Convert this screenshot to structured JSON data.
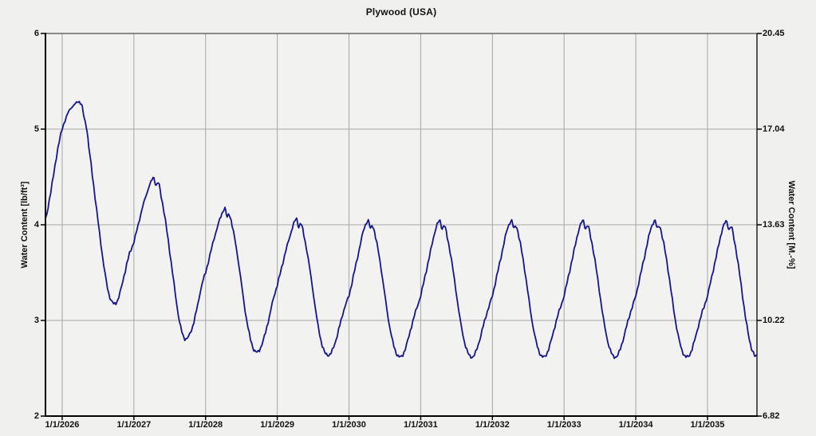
{
  "window": {
    "background": "#f0f0ee"
  },
  "chart": {
    "plot_background": "#f2f2f0",
    "grid_color": "#a6a6a6",
    "axis_color": "#000000",
    "frame_color": "#4d4d4d",
    "line_color": "#15158c"
  },
  "chart_data": {
    "type": "line",
    "title": "Plywood (USA)",
    "grid": true,
    "legend": "none",
    "x_axis": {
      "range_years": [
        2025.767,
        2035.69
      ],
      "tick_years": [
        2026,
        2027,
        2028,
        2029,
        2030,
        2031,
        2032,
        2033,
        2034,
        2035
      ],
      "tick_labels": [
        "1/1/2026",
        "1/1/2027",
        "1/1/2028",
        "1/1/2029",
        "1/1/2030",
        "1/1/2031",
        "1/1/2032",
        "1/1/2033",
        "1/1/2034",
        "1/1/2035"
      ]
    },
    "y_left": {
      "label": "Water Content [lb/ft³]",
      "range": [
        2,
        6
      ],
      "ticks": [
        6,
        5,
        4,
        3,
        2
      ]
    },
    "y_right": {
      "label": "Water Content [M.-%]",
      "tick_labels": [
        "20.45",
        "17.04",
        "13.63",
        "10.22",
        "6.82"
      ]
    },
    "series": [
      {
        "name": "Water Content",
        "color": "#15158c",
        "points": [
          [
            2025.77,
            4.06
          ],
          [
            2025.82,
            4.26
          ],
          [
            2025.88,
            4.52
          ],
          [
            2025.94,
            4.8
          ],
          [
            2026.0,
            5.0
          ],
          [
            2026.06,
            5.13
          ],
          [
            2026.12,
            5.22
          ],
          [
            2026.18,
            5.26
          ],
          [
            2026.24,
            5.29
          ],
          [
            2026.28,
            5.23
          ],
          [
            2026.31,
            5.1
          ],
          [
            2026.34,
            5.02
          ],
          [
            2026.37,
            4.82
          ],
          [
            2026.42,
            4.52
          ],
          [
            2026.48,
            4.16
          ],
          [
            2026.54,
            3.8
          ],
          [
            2026.6,
            3.48
          ],
          [
            2026.65,
            3.28
          ],
          [
            2026.7,
            3.19
          ],
          [
            2026.75,
            3.18
          ],
          [
            2026.81,
            3.3
          ],
          [
            2026.88,
            3.52
          ],
          [
            2026.94,
            3.7
          ],
          [
            2027.0,
            3.82
          ],
          [
            2027.06,
            4.0
          ],
          [
            2027.12,
            4.18
          ],
          [
            2027.18,
            4.33
          ],
          [
            2027.24,
            4.45
          ],
          [
            2027.28,
            4.49
          ],
          [
            2027.31,
            4.41
          ],
          [
            2027.34,
            4.44
          ],
          [
            2027.38,
            4.3
          ],
          [
            2027.44,
            4.04
          ],
          [
            2027.5,
            3.72
          ],
          [
            2027.56,
            3.38
          ],
          [
            2027.62,
            3.06
          ],
          [
            2027.67,
            2.88
          ],
          [
            2027.71,
            2.81
          ],
          [
            2027.76,
            2.83
          ],
          [
            2027.82,
            2.94
          ],
          [
            2027.89,
            3.16
          ],
          [
            2027.95,
            3.38
          ],
          [
            2028.0,
            3.5
          ],
          [
            2028.06,
            3.68
          ],
          [
            2028.12,
            3.86
          ],
          [
            2028.18,
            4.01
          ],
          [
            2028.23,
            4.12
          ],
          [
            2028.27,
            4.17
          ],
          [
            2028.3,
            4.08
          ],
          [
            2028.33,
            4.11
          ],
          [
            2028.37,
            3.99
          ],
          [
            2028.43,
            3.75
          ],
          [
            2028.49,
            3.44
          ],
          [
            2028.55,
            3.11
          ],
          [
            2028.61,
            2.86
          ],
          [
            2028.66,
            2.72
          ],
          [
            2028.7,
            2.67
          ],
          [
            2028.75,
            2.69
          ],
          [
            2028.82,
            2.83
          ],
          [
            2028.89,
            3.04
          ],
          [
            2028.95,
            3.24
          ],
          [
            2029.0,
            3.37
          ],
          [
            2029.06,
            3.55
          ],
          [
            2029.12,
            3.73
          ],
          [
            2029.18,
            3.89
          ],
          [
            2029.23,
            4.01
          ],
          [
            2029.27,
            4.06
          ],
          [
            2029.3,
            3.98
          ],
          [
            2029.33,
            4.01
          ],
          [
            2029.37,
            3.89
          ],
          [
            2029.43,
            3.65
          ],
          [
            2029.49,
            3.35
          ],
          [
            2029.55,
            3.03
          ],
          [
            2029.61,
            2.79
          ],
          [
            2029.66,
            2.67
          ],
          [
            2029.7,
            2.64
          ],
          [
            2029.75,
            2.66
          ],
          [
            2029.82,
            2.8
          ],
          [
            2029.89,
            3.0
          ],
          [
            2029.95,
            3.16
          ],
          [
            2030.0,
            3.26
          ],
          [
            2030.06,
            3.46
          ],
          [
            2030.12,
            3.66
          ],
          [
            2030.18,
            3.87
          ],
          [
            2030.23,
            4.0
          ],
          [
            2030.27,
            4.04
          ],
          [
            2030.3,
            3.96
          ],
          [
            2030.33,
            3.99
          ],
          [
            2030.37,
            3.87
          ],
          [
            2030.43,
            3.63
          ],
          [
            2030.49,
            3.32
          ],
          [
            2030.55,
            3.01
          ],
          [
            2030.61,
            2.78
          ],
          [
            2030.66,
            2.66
          ],
          [
            2030.7,
            2.62
          ],
          [
            2030.75,
            2.64
          ],
          [
            2030.82,
            2.79
          ],
          [
            2030.89,
            2.99
          ],
          [
            2030.95,
            3.14
          ],
          [
            2031.0,
            3.26
          ],
          [
            2031.06,
            3.46
          ],
          [
            2031.12,
            3.66
          ],
          [
            2031.18,
            3.87
          ],
          [
            2031.23,
            4.0
          ],
          [
            2031.27,
            4.04
          ],
          [
            2031.3,
            3.96
          ],
          [
            2031.33,
            3.99
          ],
          [
            2031.37,
            3.87
          ],
          [
            2031.43,
            3.63
          ],
          [
            2031.49,
            3.32
          ],
          [
            2031.55,
            3.01
          ],
          [
            2031.61,
            2.78
          ],
          [
            2031.66,
            2.66
          ],
          [
            2031.7,
            2.62
          ],
          [
            2031.75,
            2.64
          ],
          [
            2031.82,
            2.79
          ],
          [
            2031.89,
            2.99
          ],
          [
            2031.95,
            3.14
          ],
          [
            2032.0,
            3.26
          ],
          [
            2032.06,
            3.46
          ],
          [
            2032.12,
            3.66
          ],
          [
            2032.18,
            3.87
          ],
          [
            2032.23,
            4.0
          ],
          [
            2032.27,
            4.04
          ],
          [
            2032.3,
            3.96
          ],
          [
            2032.33,
            3.99
          ],
          [
            2032.37,
            3.87
          ],
          [
            2032.43,
            3.63
          ],
          [
            2032.49,
            3.32
          ],
          [
            2032.55,
            3.01
          ],
          [
            2032.61,
            2.78
          ],
          [
            2032.66,
            2.66
          ],
          [
            2032.7,
            2.62
          ],
          [
            2032.75,
            2.64
          ],
          [
            2032.82,
            2.79
          ],
          [
            2032.89,
            2.99
          ],
          [
            2032.95,
            3.14
          ],
          [
            2033.0,
            3.26
          ],
          [
            2033.06,
            3.46
          ],
          [
            2033.12,
            3.66
          ],
          [
            2033.18,
            3.87
          ],
          [
            2033.23,
            4.0
          ],
          [
            2033.27,
            4.04
          ],
          [
            2033.3,
            3.96
          ],
          [
            2033.33,
            3.99
          ],
          [
            2033.37,
            3.87
          ],
          [
            2033.43,
            3.63
          ],
          [
            2033.49,
            3.32
          ],
          [
            2033.55,
            3.01
          ],
          [
            2033.61,
            2.78
          ],
          [
            2033.66,
            2.66
          ],
          [
            2033.7,
            2.62
          ],
          [
            2033.75,
            2.64
          ],
          [
            2033.82,
            2.79
          ],
          [
            2033.89,
            2.99
          ],
          [
            2033.95,
            3.14
          ],
          [
            2034.0,
            3.26
          ],
          [
            2034.06,
            3.46
          ],
          [
            2034.12,
            3.66
          ],
          [
            2034.18,
            3.87
          ],
          [
            2034.23,
            4.0
          ],
          [
            2034.27,
            4.04
          ],
          [
            2034.3,
            3.96
          ],
          [
            2034.33,
            3.99
          ],
          [
            2034.37,
            3.87
          ],
          [
            2034.43,
            3.63
          ],
          [
            2034.49,
            3.32
          ],
          [
            2034.55,
            3.01
          ],
          [
            2034.61,
            2.78
          ],
          [
            2034.66,
            2.66
          ],
          [
            2034.7,
            2.62
          ],
          [
            2034.75,
            2.64
          ],
          [
            2034.82,
            2.79
          ],
          [
            2034.89,
            2.99
          ],
          [
            2034.95,
            3.14
          ],
          [
            2035.0,
            3.26
          ],
          [
            2035.06,
            3.46
          ],
          [
            2035.12,
            3.66
          ],
          [
            2035.18,
            3.87
          ],
          [
            2035.23,
            4.0
          ],
          [
            2035.27,
            4.03
          ],
          [
            2035.3,
            3.95
          ],
          [
            2035.33,
            3.98
          ],
          [
            2035.37,
            3.85
          ],
          [
            2035.43,
            3.58
          ],
          [
            2035.49,
            3.25
          ],
          [
            2035.55,
            2.94
          ],
          [
            2035.6,
            2.75
          ],
          [
            2035.64,
            2.66
          ],
          [
            2035.67,
            2.62
          ],
          [
            2035.69,
            2.63
          ]
        ]
      }
    ]
  }
}
